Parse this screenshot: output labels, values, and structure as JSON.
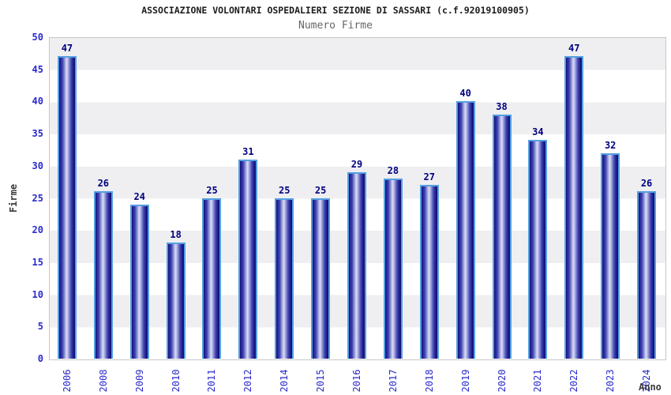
{
  "title": "ASSOCIAZIONE VOLONTARI OSPEDALIERI SEZIONE DI SASSARI (c.f.92019100905)",
  "subtitle": "Numero Firme",
  "chart_data": {
    "type": "bar",
    "title": "ASSOCIAZIONE VOLONTARI OSPEDALIERI SEZIONE DI SASSARI (c.f.92019100905)",
    "subtitle": "Numero Firme",
    "categories": [
      "2006",
      "2008",
      "2009",
      "2010",
      "2011",
      "2012",
      "2014",
      "2015",
      "2016",
      "2017",
      "2018",
      "2019",
      "2020",
      "2021",
      "2022",
      "2023",
      "2024"
    ],
    "values": [
      47,
      26,
      24,
      18,
      25,
      31,
      25,
      25,
      29,
      28,
      27,
      40,
      38,
      34,
      47,
      32,
      26
    ],
    "xlabel": "Anno",
    "ylabel": "Firme",
    "ylim": [
      0,
      50
    ],
    "yticks": [
      0,
      5,
      10,
      15,
      20,
      25,
      30,
      35,
      40,
      45,
      50
    ],
    "grid": "alternating-horizontal-bands",
    "legend": "none",
    "bar_labels_shown": true
  },
  "colors": {
    "title": "#1c1c1c",
    "subtitle": "#666666",
    "axis_title": "#3a3a3a",
    "tick_label": "#2a2acc",
    "value_label": "#000080",
    "band_gray": "#efeff2",
    "band_white": "#ffffff",
    "plot_border": "#c8c8c8",
    "bar_edge_dark": "#0e0e70",
    "bar_mid": "#4547b2",
    "bar_light": "#dcdef5",
    "bar_highlight_border": "#55a0e0"
  }
}
